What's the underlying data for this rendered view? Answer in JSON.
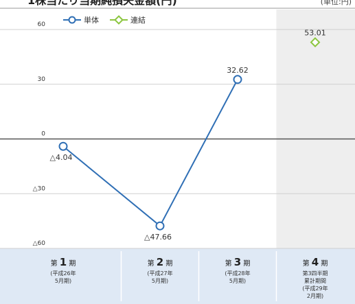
{
  "header": {
    "title": "1株当たり当期純損失金額(円)",
    "unit": "(単位:円)"
  },
  "legend": {
    "single_label": "単体",
    "consolidated_label": "連結"
  },
  "colors": {
    "single": "#2f6fb5",
    "consolidated": "#8cc63f",
    "axis": "#555555",
    "grid": "#cfcfcf",
    "band": "#dfe9f5",
    "shade": "#eeeeee",
    "text": "#333333"
  },
  "chart_data": {
    "type": "line",
    "ylim": [
      -60,
      60
    ],
    "yticks": [
      {
        "value": 60,
        "label": "60"
      },
      {
        "value": 30,
        "label": "30"
      },
      {
        "value": 0,
        "label": "0"
      },
      {
        "value": -30,
        "label": "△30"
      },
      {
        "value": -60,
        "label": "△60"
      }
    ],
    "categories": [
      {
        "num": "1",
        "sub": [
          "(平成26年",
          "5月期)"
        ]
      },
      {
        "num": "2",
        "sub": [
          "(平成27年",
          "5月期)"
        ]
      },
      {
        "num": "3",
        "sub": [
          "(平成28年",
          "5月期)"
        ]
      },
      {
        "num": "4",
        "sub": [
          "第3四半期",
          "累計期間",
          "(平成29年",
          "2月期)"
        ]
      }
    ],
    "category_prefix": "第",
    "category_suffix": "期",
    "series": [
      {
        "name": "単体",
        "key": "single",
        "values": [
          -4.04,
          -47.66,
          32.62,
          null
        ],
        "labels": [
          "△4.04",
          "△47.66",
          "32.62",
          ""
        ]
      },
      {
        "name": "連結",
        "key": "consolidated",
        "values": [
          null,
          null,
          null,
          53.01
        ],
        "labels": [
          "",
          "",
          "",
          "53.01"
        ]
      }
    ]
  }
}
